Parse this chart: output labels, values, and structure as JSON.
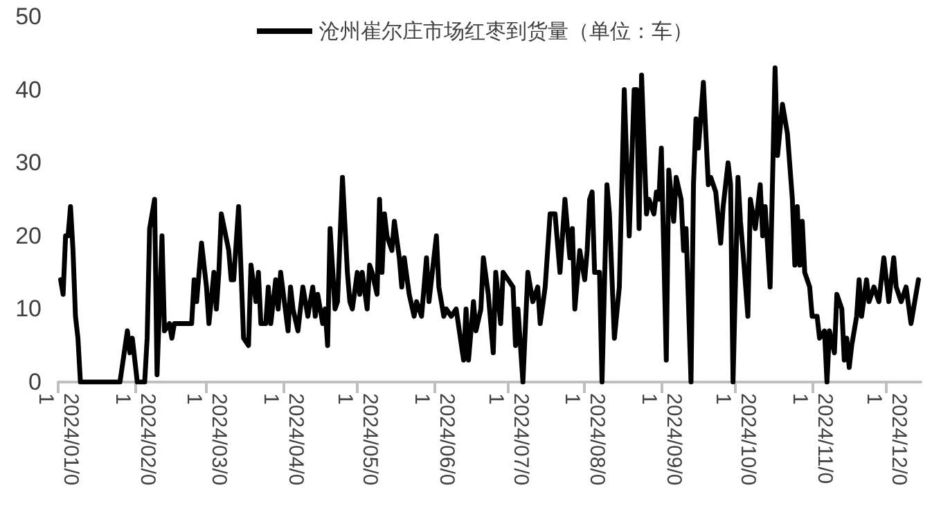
{
  "chart_data": {
    "type": "line",
    "x": [
      "2024-01-02",
      "2024-01-03",
      "2024-01-04",
      "2024-01-05",
      "2024-01-06",
      "2024-01-07",
      "2024-01-08",
      "2024-01-09",
      "2024-01-10",
      "2024-01-26",
      "2024-01-29",
      "2024-01-30",
      "2024-01-31",
      "2024-02-02",
      "2024-02-05",
      "2024-02-06",
      "2024-02-07",
      "2024-02-09",
      "2024-02-10",
      "2024-02-12",
      "2024-02-13",
      "2024-02-15",
      "2024-02-16",
      "2024-02-17",
      "2024-02-24",
      "2024-02-25",
      "2024-02-26",
      "2024-02-28",
      "2024-03-01",
      "2024-03-02",
      "2024-03-04",
      "2024-03-05",
      "2024-03-06",
      "2024-03-07",
      "2024-03-10",
      "2024-03-11",
      "2024-03-12",
      "2024-03-14",
      "2024-03-16",
      "2024-03-18",
      "2024-03-19",
      "2024-03-21",
      "2024-03-22",
      "2024-03-23",
      "2024-03-25",
      "2024-03-26",
      "2024-03-27",
      "2024-03-29",
      "2024-03-30",
      "2024-03-31",
      "2024-04-03",
      "2024-04-04",
      "2024-04-05",
      "2024-04-07",
      "2024-04-09",
      "2024-04-11",
      "2024-04-13",
      "2024-04-14",
      "2024-04-15",
      "2024-04-17",
      "2024-04-18",
      "2024-04-19",
      "2024-04-20",
      "2024-04-22",
      "2024-04-23",
      "2024-04-25",
      "2024-04-27",
      "2024-04-28",
      "2024-04-29",
      "2024-05-01",
      "2024-05-02",
      "2024-05-03",
      "2024-05-05",
      "2024-05-06",
      "2024-05-07",
      "2024-05-09",
      "2024-05-10",
      "2024-05-11",
      "2024-05-12",
      "2024-05-13",
      "2024-05-15",
      "2024-05-16",
      "2024-05-18",
      "2024-05-19",
      "2024-05-20",
      "2024-05-22",
      "2024-05-24",
      "2024-05-25",
      "2024-05-27",
      "2024-05-29",
      "2024-05-30",
      "2024-06-02",
      "2024-06-03",
      "2024-06-05",
      "2024-06-06",
      "2024-06-08",
      "2024-06-10",
      "2024-06-13",
      "2024-06-14",
      "2024-06-15",
      "2024-06-17",
      "2024-06-18",
      "2024-06-20",
      "2024-06-21",
      "2024-06-23",
      "2024-06-25",
      "2024-06-26",
      "2024-06-28",
      "2024-06-29",
      "2024-07-01",
      "2024-07-03",
      "2024-07-04",
      "2024-07-05",
      "2024-07-07",
      "2024-07-09",
      "2024-07-11",
      "2024-07-13",
      "2024-07-14",
      "2024-07-16",
      "2024-07-18",
      "2024-07-20",
      "2024-07-22",
      "2024-07-24",
      "2024-07-26",
      "2024-07-27",
      "2024-07-28",
      "2024-07-30",
      "2024-08-01",
      "2024-08-02",
      "2024-08-03",
      "2024-08-04",
      "2024-08-05",
      "2024-08-07",
      "2024-08-08",
      "2024-08-10",
      "2024-08-11",
      "2024-08-13",
      "2024-08-15",
      "2024-08-17",
      "2024-08-19",
      "2024-08-21",
      "2024-08-22",
      "2024-08-23",
      "2024-08-24",
      "2024-08-26",
      "2024-08-27",
      "2024-08-29",
      "2024-08-30",
      "2024-08-31",
      "2024-09-01",
      "2024-09-03",
      "2024-09-04",
      "2024-09-06",
      "2024-09-07",
      "2024-09-09",
      "2024-09-10",
      "2024-09-11",
      "2024-09-13",
      "2024-09-14",
      "2024-09-15",
      "2024-09-16",
      "2024-09-18",
      "2024-09-20",
      "2024-09-21",
      "2024-09-23",
      "2024-09-25",
      "2024-09-26",
      "2024-09-28",
      "2024-09-29",
      "2024-09-30",
      "2024-10-02",
      "2024-10-03",
      "2024-10-04",
      "2024-10-06",
      "2024-10-07",
      "2024-10-09",
      "2024-10-11",
      "2024-10-12",
      "2024-10-13",
      "2024-10-15",
      "2024-10-17",
      "2024-10-18",
      "2024-10-20",
      "2024-10-22",
      "2024-10-24",
      "2024-10-25",
      "2024-10-26",
      "2024-10-27",
      "2024-10-28",
      "2024-10-29",
      "2024-10-31",
      "2024-11-01",
      "2024-11-03",
      "2024-11-04",
      "2024-11-06",
      "2024-11-07",
      "2024-11-08",
      "2024-11-10",
      "2024-11-11",
      "2024-11-13",
      "2024-11-14",
      "2024-11-15",
      "2024-11-16",
      "2024-11-17",
      "2024-11-19",
      "2024-11-20",
      "2024-11-21",
      "2024-11-23",
      "2024-11-24",
      "2024-11-26",
      "2024-11-28",
      "2024-11-30",
      "2024-12-02",
      "2024-12-04",
      "2024-12-05",
      "2024-12-07",
      "2024-12-09",
      "2024-12-11",
      "2024-12-12",
      "2024-12-14"
    ],
    "series": [
      {
        "name": "沧州崔尔庄市场红枣到货量（单位：车）",
        "color": "#000000",
        "values": [
          14,
          12,
          20,
          20,
          24,
          18,
          9,
          6,
          0,
          0,
          7,
          4,
          6,
          0,
          0,
          6,
          21,
          25,
          1,
          20,
          7,
          8,
          6,
          8,
          8,
          14,
          11,
          19,
          13,
          8,
          15,
          10,
          15,
          23,
          18,
          14,
          14,
          24,
          6,
          5,
          16,
          11,
          15,
          8,
          8,
          13,
          8,
          14,
          10,
          15,
          7,
          13,
          10,
          7,
          13,
          9,
          13,
          9,
          12,
          8,
          10,
          5,
          21,
          10,
          11,
          28,
          15,
          11,
          10,
          15,
          12,
          15,
          10,
          16,
          15,
          12,
          25,
          15,
          23,
          20,
          18,
          22,
          17,
          13,
          17,
          12,
          9,
          11,
          9,
          17,
          11,
          20,
          13,
          9,
          10,
          9,
          10,
          3,
          10,
          3,
          11,
          7,
          10,
          17,
          12,
          4,
          15,
          8,
          15,
          14,
          13,
          5,
          10,
          0,
          15,
          11,
          13,
          8,
          13,
          23,
          23,
          15,
          25,
          17,
          21,
          10,
          18,
          14,
          18,
          25,
          26,
          15,
          15,
          0,
          27,
          23,
          6,
          13,
          40,
          20,
          40,
          40,
          21,
          42,
          23,
          25,
          23,
          26,
          25,
          32,
          3,
          29,
          22,
          28,
          25,
          18,
          21,
          0,
          27,
          36,
          32,
          41,
          27,
          28,
          26,
          19,
          24,
          30,
          27,
          0,
          28,
          22,
          18,
          9,
          25,
          21,
          27,
          20,
          24,
          13,
          43,
          31,
          38,
          34,
          25,
          16,
          24,
          16,
          22,
          15,
          13,
          9,
          9,
          6,
          7,
          0,
          7,
          4,
          12,
          10,
          3,
          6,
          2,
          5,
          9,
          14,
          9,
          14,
          11,
          13,
          11,
          17,
          11,
          17,
          13,
          11,
          13,
          8,
          10,
          14
        ]
      }
    ],
    "xlim": [
      "2024-01-01",
      "2024-12-15"
    ],
    "xticks": [
      {
        "value": "2024-01-01",
        "label": "2024/01/01"
      },
      {
        "value": "2024-02-01",
        "label": "2024/02/01"
      },
      {
        "value": "2024-03-01",
        "label": "2024/03/01"
      },
      {
        "value": "2024-04-01",
        "label": "2024/04/01"
      },
      {
        "value": "2024-05-01",
        "label": "2024/05/01"
      },
      {
        "value": "2024-06-01",
        "label": "2024/06/01"
      },
      {
        "value": "2024-07-01",
        "label": "2024/07/01"
      },
      {
        "value": "2024-08-01",
        "label": "2024/08/01"
      },
      {
        "value": "2024-09-01",
        "label": "2024/09/01"
      },
      {
        "value": "2024-10-01",
        "label": "2024/10/01"
      },
      {
        "value": "2024-11-01",
        "label": "2024/11/01"
      },
      {
        "value": "2024-12-01",
        "label": "2024/12/01"
      }
    ],
    "ylim": [
      0,
      50
    ],
    "yticks": [
      0,
      10,
      20,
      30,
      40,
      50
    ],
    "grid": false,
    "legend": "top",
    "marker": "none",
    "line_style": "solid"
  }
}
